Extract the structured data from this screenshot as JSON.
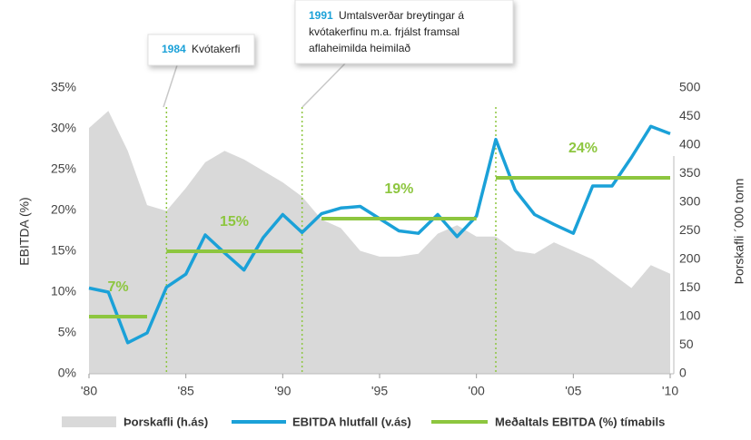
{
  "chart_data": {
    "type": "combo",
    "x": [
      1980,
      1981,
      1982,
      1983,
      1984,
      1985,
      1986,
      1987,
      1988,
      1989,
      1990,
      1991,
      1992,
      1993,
      1994,
      1995,
      1996,
      1997,
      1998,
      1999,
      2000,
      2001,
      2002,
      2003,
      2004,
      2005,
      2006,
      2007,
      2008,
      2009,
      2010
    ],
    "xlim": [
      1980,
      2010
    ],
    "xticks": [
      {
        "value": 1980,
        "label": "'80"
      },
      {
        "value": 1985,
        "label": "'85"
      },
      {
        "value": 1990,
        "label": "'90"
      },
      {
        "value": 1995,
        "label": "'95"
      },
      {
        "value": 2000,
        "label": "'00"
      },
      {
        "value": 2005,
        "label": "'05"
      },
      {
        "value": 2010,
        "label": "'10"
      }
    ],
    "ylim": [
      0,
      35
    ],
    "yticks": [
      {
        "value": 0,
        "label": "0%"
      },
      {
        "value": 5,
        "label": "5%"
      },
      {
        "value": 10,
        "label": "10%"
      },
      {
        "value": 15,
        "label": "15%"
      },
      {
        "value": 20,
        "label": "20%"
      },
      {
        "value": 25,
        "label": "25%"
      },
      {
        "value": 30,
        "label": "30%"
      },
      {
        "value": 35,
        "label": "35%"
      }
    ],
    "y2lim": [
      0,
      500
    ],
    "y2ticks": [
      0,
      50,
      100,
      150,
      200,
      250,
      300,
      350,
      400,
      450,
      500
    ],
    "ylabel": "EBITDA (%)",
    "y2label": "Þorskafli ´000 tonn",
    "series": [
      {
        "name": "Þorskafli (h.ás)",
        "type": "area",
        "axis": "y2",
        "color": "#d9d9d9",
        "values": [
          430,
          460,
          390,
          295,
          285,
          325,
          370,
          390,
          375,
          355,
          335,
          310,
          270,
          255,
          215,
          205,
          205,
          210,
          245,
          260,
          240,
          240,
          215,
          210,
          230,
          215,
          200,
          175,
          150,
          190,
          175
        ]
      },
      {
        "name": "EBITDA hlutfall (v.ás)",
        "type": "line",
        "color": "#1ba1d8",
        "values": [
          10.5,
          10.0,
          3.8,
          5.0,
          10.6,
          12.2,
          17.0,
          14.8,
          12.7,
          16.7,
          19.5,
          17.3,
          19.6,
          20.3,
          20.5,
          19.0,
          17.5,
          17.2,
          19.5,
          16.8,
          19.3,
          28.7,
          22.5,
          19.5,
          18.3,
          17.2,
          23.0,
          23.0,
          26.5,
          30.3,
          29.4
        ]
      }
    ],
    "averages": {
      "name": "Meðaltals EBITDA (%) tímabils",
      "color": "#8dc63f",
      "periods": [
        {
          "start": 1980,
          "end": 1983,
          "value": 7,
          "value_label": "7%"
        },
        {
          "start": 1984,
          "end": 1991,
          "value": 15,
          "value_label": "15%"
        },
        {
          "start": 1992,
          "end": 2000,
          "value": 19,
          "value_label": "19%"
        },
        {
          "start": 2001,
          "end": 2010,
          "value": 24,
          "value_label": "24%"
        }
      ]
    },
    "markers": {
      "color": "#8dc63f",
      "x": [
        1984,
        1991,
        2001
      ]
    },
    "annotations": [
      {
        "year": "1984",
        "lines": [
          "Kvótakerfi"
        ]
      },
      {
        "year": "1991",
        "lines": [
          "Umtalsverðar breytingar á",
          "kvótakerfinu m.a. frjálst framsal",
          "aflaheimilda heimilað"
        ]
      }
    ]
  }
}
